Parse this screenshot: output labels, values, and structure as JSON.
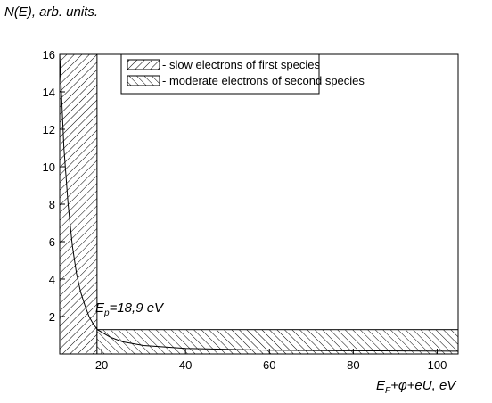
{
  "chart_data": {
    "type": "line",
    "y_label": "N(E), arb. units.",
    "x_label": [
      "E",
      "F",
      "+φ+eU,  eV"
    ],
    "annotation": [
      "E",
      "p",
      "=18,9 eV"
    ],
    "x": [
      10,
      11,
      12,
      13,
      14,
      15,
      16,
      17,
      18,
      19,
      22,
      25,
      30,
      40,
      60,
      80,
      105
    ],
    "values": [
      16,
      11,
      8,
      5.8,
      4.3,
      3.3,
      2.6,
      2.0,
      1.6,
      1.3,
      0.9,
      0.65,
      0.45,
      0.3,
      0.2,
      0.17,
      0.15
    ],
    "color": "#000000",
    "regions": [
      {
        "name": "- slow electrons of first  species",
        "x": [
          10,
          18.9
        ],
        "y": [
          0,
          16
        ],
        "hatch": "fwd"
      },
      {
        "name": "- moderate electrons of second species",
        "x": [
          18.9,
          105
        ],
        "y": [
          0,
          1.3
        ],
        "hatch": "back"
      }
    ],
    "xlim": [
      10,
      105
    ],
    "ylim": [
      0,
      16
    ],
    "xticks": [
      20,
      40,
      60,
      80,
      100
    ],
    "yticks": [
      2,
      4,
      6,
      8,
      10,
      12,
      14,
      16
    ]
  }
}
